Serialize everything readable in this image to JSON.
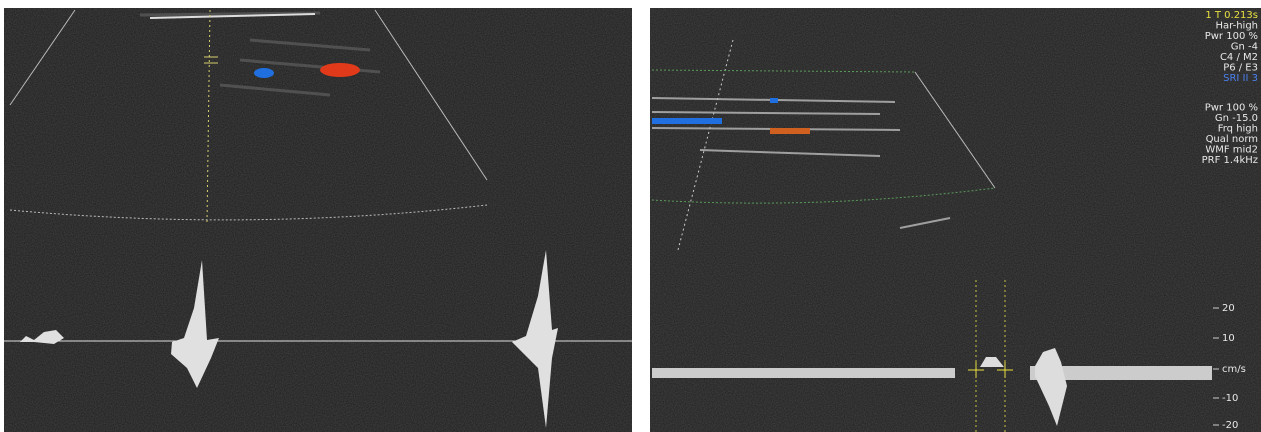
{
  "right_panel": {
    "frame_time": "1 T 0.213s",
    "settings_a": [
      "Har-high",
      "Pwr 100 %",
      "Gn -4",
      "C4 / M2",
      "P6 / E3"
    ],
    "sri": "SRI II 3",
    "settings_b": [
      "Pwr 100 %",
      "Gn -15.0",
      "Frq high",
      "Qual norm",
      "WMF mid2",
      "PRF 1.4kHz"
    ],
    "scale": [
      "20",
      "10",
      "cm/s",
      "-10",
      "-20"
    ]
  }
}
